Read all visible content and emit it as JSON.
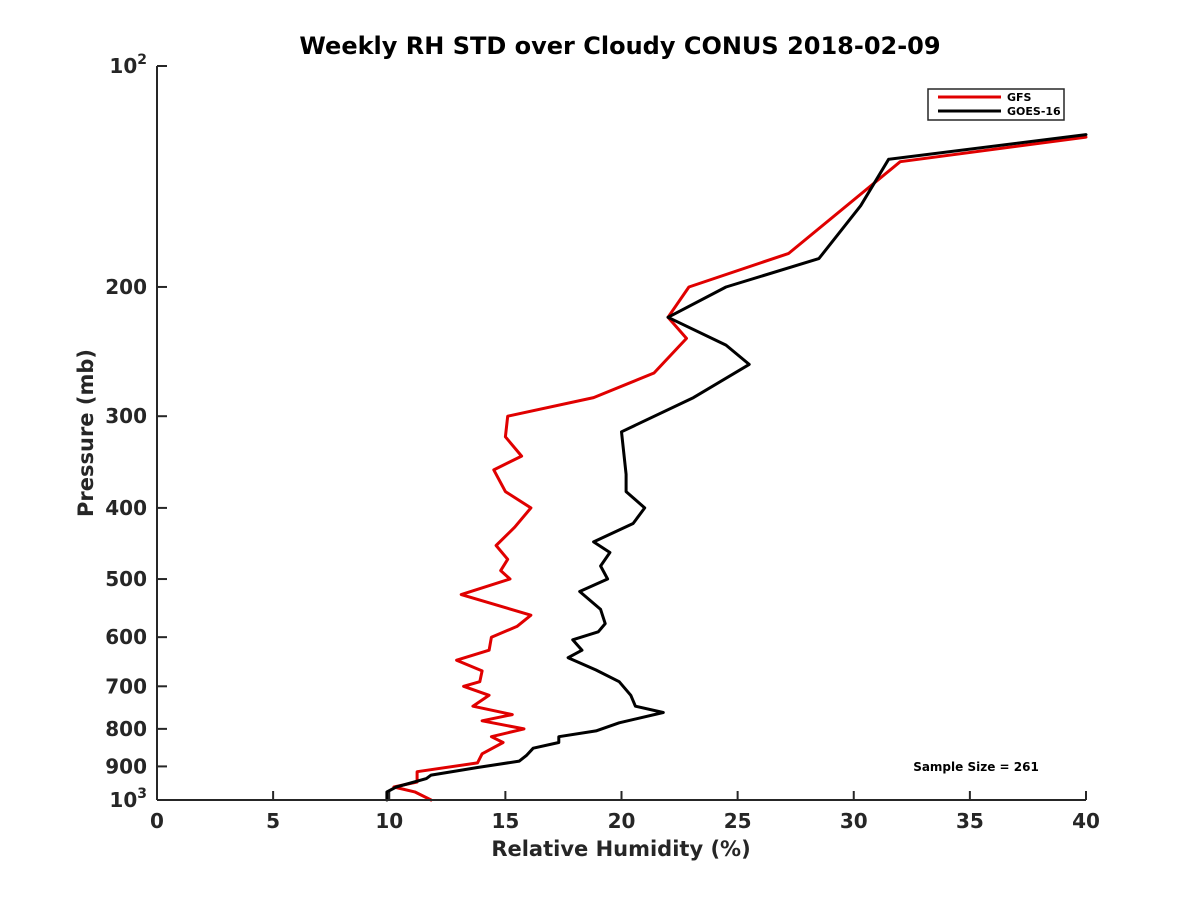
{
  "chart_data": {
    "type": "line",
    "title": "Weekly RH STD over Cloudy CONUS 2018-02-09",
    "xlabel": "Relative Humidity (%)",
    "ylabel": "Pressure (mb)",
    "xlim": [
      0,
      40
    ],
    "ylim": [
      100,
      1000
    ],
    "y_scale": "log",
    "y_reversed": true,
    "x_ticks": [
      "0",
      "5",
      "10",
      "15",
      "20",
      "25",
      "30",
      "35",
      "40"
    ],
    "y_ticks": [
      {
        "value": 100,
        "base": "10",
        "exp": "2"
      },
      {
        "value": 200,
        "label": "200"
      },
      {
        "value": 300,
        "label": "300"
      },
      {
        "value": 400,
        "label": "400"
      },
      {
        "value": 500,
        "label": "500"
      },
      {
        "value": 600,
        "label": "600"
      },
      {
        "value": 700,
        "label": "700"
      },
      {
        "value": 800,
        "label": "800"
      },
      {
        "value": 900,
        "label": "900"
      },
      {
        "value": 1000,
        "base": "10",
        "exp": "3"
      }
    ],
    "grid": false,
    "legend_position": "top-right",
    "series": [
      {
        "name": "GFS",
        "color": "#e00000",
        "points": [
          {
            "x": 40.0,
            "y": 125
          },
          {
            "x": 32.0,
            "y": 135
          },
          {
            "x": 27.2,
            "y": 180
          },
          {
            "x": 22.9,
            "y": 200
          },
          {
            "x": 22.0,
            "y": 220
          },
          {
            "x": 22.8,
            "y": 235
          },
          {
            "x": 21.4,
            "y": 262
          },
          {
            "x": 18.8,
            "y": 283
          },
          {
            "x": 15.1,
            "y": 300
          },
          {
            "x": 15.0,
            "y": 320
          },
          {
            "x": 15.7,
            "y": 340
          },
          {
            "x": 14.5,
            "y": 355
          },
          {
            "x": 15.0,
            "y": 380
          },
          {
            "x": 16.1,
            "y": 400
          },
          {
            "x": 15.4,
            "y": 425
          },
          {
            "x": 14.6,
            "y": 450
          },
          {
            "x": 15.1,
            "y": 470
          },
          {
            "x": 14.8,
            "y": 487
          },
          {
            "x": 15.2,
            "y": 500
          },
          {
            "x": 13.1,
            "y": 525
          },
          {
            "x": 16.1,
            "y": 560
          },
          {
            "x": 15.5,
            "y": 580
          },
          {
            "x": 14.4,
            "y": 600
          },
          {
            "x": 14.3,
            "y": 625
          },
          {
            "x": 12.9,
            "y": 645
          },
          {
            "x": 14.0,
            "y": 667
          },
          {
            "x": 13.9,
            "y": 690
          },
          {
            "x": 13.2,
            "y": 700
          },
          {
            "x": 14.3,
            "y": 720
          },
          {
            "x": 13.6,
            "y": 745
          },
          {
            "x": 15.3,
            "y": 765
          },
          {
            "x": 14.0,
            "y": 780
          },
          {
            "x": 15.8,
            "y": 800
          },
          {
            "x": 14.4,
            "y": 820
          },
          {
            "x": 14.9,
            "y": 835
          },
          {
            "x": 14.0,
            "y": 865
          },
          {
            "x": 13.8,
            "y": 890
          },
          {
            "x": 11.2,
            "y": 915
          },
          {
            "x": 11.2,
            "y": 945
          },
          {
            "x": 10.2,
            "y": 960
          },
          {
            "x": 11.1,
            "y": 975
          },
          {
            "x": 11.8,
            "y": 1000
          }
        ]
      },
      {
        "name": "GOES-16",
        "color": "#000000",
        "points": [
          {
            "x": 40.0,
            "y": 124
          },
          {
            "x": 31.5,
            "y": 134
          },
          {
            "x": 30.3,
            "y": 155
          },
          {
            "x": 28.5,
            "y": 183
          },
          {
            "x": 24.5,
            "y": 200
          },
          {
            "x": 22.0,
            "y": 220
          },
          {
            "x": 24.5,
            "y": 240
          },
          {
            "x": 25.5,
            "y": 255
          },
          {
            "x": 23.1,
            "y": 283
          },
          {
            "x": 20.0,
            "y": 315
          },
          {
            "x": 20.2,
            "y": 360
          },
          {
            "x": 20.2,
            "y": 380
          },
          {
            "x": 21.0,
            "y": 400
          },
          {
            "x": 20.5,
            "y": 420
          },
          {
            "x": 18.8,
            "y": 445
          },
          {
            "x": 19.5,
            "y": 460
          },
          {
            "x": 19.1,
            "y": 480
          },
          {
            "x": 19.4,
            "y": 500
          },
          {
            "x": 18.2,
            "y": 520
          },
          {
            "x": 19.1,
            "y": 550
          },
          {
            "x": 19.3,
            "y": 575
          },
          {
            "x": 19.0,
            "y": 590
          },
          {
            "x": 17.9,
            "y": 605
          },
          {
            "x": 18.3,
            "y": 625
          },
          {
            "x": 17.7,
            "y": 640
          },
          {
            "x": 18.9,
            "y": 665
          },
          {
            "x": 19.9,
            "y": 690
          },
          {
            "x": 20.4,
            "y": 720
          },
          {
            "x": 20.6,
            "y": 745
          },
          {
            "x": 21.8,
            "y": 760
          },
          {
            "x": 19.9,
            "y": 785
          },
          {
            "x": 18.9,
            "y": 805
          },
          {
            "x": 17.3,
            "y": 820
          },
          {
            "x": 17.3,
            "y": 835
          },
          {
            "x": 16.2,
            "y": 850
          },
          {
            "x": 15.9,
            "y": 870
          },
          {
            "x": 15.6,
            "y": 885
          },
          {
            "x": 13.8,
            "y": 903
          },
          {
            "x": 11.8,
            "y": 925
          },
          {
            "x": 11.6,
            "y": 935
          },
          {
            "x": 10.3,
            "y": 960
          },
          {
            "x": 9.9,
            "y": 975
          },
          {
            "x": 9.9,
            "y": 1000
          }
        ]
      }
    ],
    "annotations": [
      "Sample Size = 261"
    ]
  }
}
